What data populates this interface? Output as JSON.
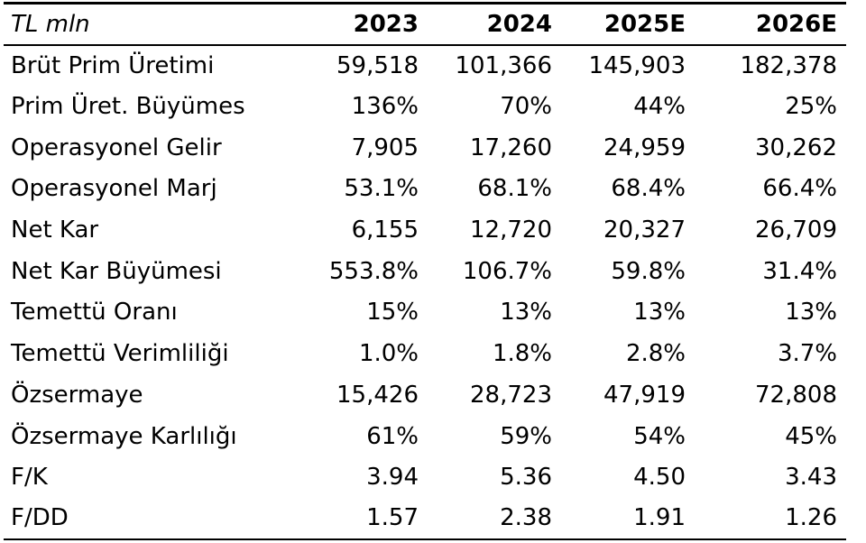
{
  "chart_data": {
    "type": "table",
    "unit_label": "TL mln",
    "columns": [
      "2023",
      "2024",
      "2025E",
      "2026E"
    ],
    "rows": [
      {
        "label": "Brüt Prim Üretimi",
        "values": [
          "59,518",
          "101,366",
          "145,903",
          "182,378"
        ]
      },
      {
        "label": "Prim Üret. Büyümes",
        "values": [
          "136%",
          "70%",
          "44%",
          "25%"
        ]
      },
      {
        "label": "Operasyonel Gelir",
        "values": [
          "7,905",
          "17,260",
          "24,959",
          "30,262"
        ]
      },
      {
        "label": "Operasyonel Marj",
        "values": [
          "53.1%",
          "68.1%",
          "68.4%",
          "66.4%"
        ]
      },
      {
        "label": "Net Kar",
        "values": [
          "6,155",
          "12,720",
          "20,327",
          "26,709"
        ]
      },
      {
        "label": "Net Kar Büyümesi",
        "values": [
          "553.8%",
          "106.7%",
          "59.8%",
          "31.4%"
        ]
      },
      {
        "label": "Temettü Oranı",
        "values": [
          "15%",
          "13%",
          "13%",
          "13%"
        ]
      },
      {
        "label": "Temettü Verimliliği",
        "values": [
          "1.0%",
          "1.8%",
          "2.8%",
          "3.7%"
        ]
      },
      {
        "label": "Özsermaye",
        "values": [
          "15,426",
          "28,723",
          "47,919",
          "72,808"
        ]
      },
      {
        "label": "Özsermaye Karlılığı",
        "values": [
          "61%",
          "59%",
          "54%",
          "45%"
        ]
      },
      {
        "label": "F/K",
        "values": [
          "3.94",
          "5.36",
          "4.50",
          "3.43"
        ]
      },
      {
        "label": "F/DD",
        "values": [
          "1.57",
          "2.38",
          "1.91",
          "1.26"
        ]
      }
    ]
  }
}
